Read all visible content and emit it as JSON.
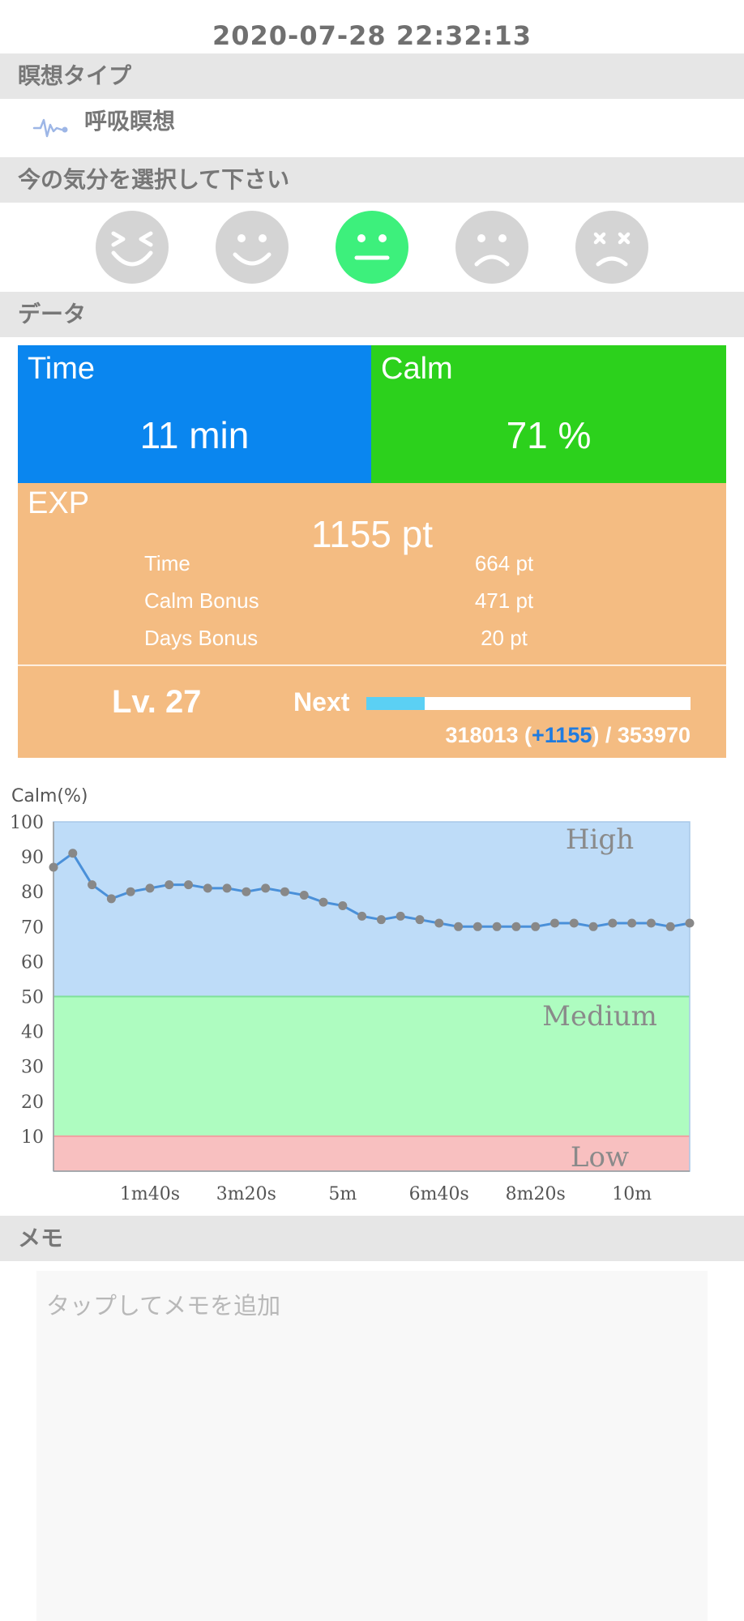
{
  "header": {
    "datetime": "2020-07-28 22:32:13"
  },
  "meditation_type": {
    "section_title": "瞑想タイプ",
    "icon": "breathing-wave-icon",
    "label": "呼吸瞑想"
  },
  "mood": {
    "section_title": "今の気分を選択して下さい",
    "options": [
      {
        "icon": "laughing-face-icon",
        "selected": false
      },
      {
        "icon": "smiling-face-icon",
        "selected": false
      },
      {
        "icon": "neutral-face-icon",
        "selected": true
      },
      {
        "icon": "sad-face-icon",
        "selected": false
      },
      {
        "icon": "dizzy-face-icon",
        "selected": false
      }
    ],
    "selected_color": "#3df07c",
    "unselected_color": "#d4d4d4"
  },
  "data_section": {
    "section_title": "データ",
    "time": {
      "title": "Time",
      "value": "11 min",
      "color": "#0a86ef"
    },
    "calm": {
      "title": "Calm",
      "value": "71 %",
      "color": "#2cd11c"
    },
    "exp": {
      "title": "EXP",
      "total": "1155 pt",
      "breakdown": [
        {
          "label": "Time",
          "value": "664 pt"
        },
        {
          "label": "Calm Bonus",
          "value": "471 pt"
        },
        {
          "label": "Days Bonus",
          "value": "20 pt"
        }
      ],
      "color": "#f4bc82"
    },
    "level": {
      "label": "Lv. 27",
      "next_label": "Next",
      "progress_fraction": 0.18,
      "current": "318013",
      "gain": "+1155",
      "target": "353970"
    }
  },
  "chart_data": {
    "type": "line",
    "ylabel": "Calm(%)",
    "ylim": [
      0,
      100
    ],
    "yticks": [
      10,
      20,
      30,
      40,
      50,
      60,
      70,
      80,
      90,
      100
    ],
    "xlim_seconds": [
      0,
      660
    ],
    "xticks": [
      {
        "label": "1m40s",
        "value": 100
      },
      {
        "label": "3m20s",
        "value": 200
      },
      {
        "label": "5m",
        "value": 300
      },
      {
        "label": "6m40s",
        "value": 400
      },
      {
        "label": "8m20s",
        "value": 500
      },
      {
        "label": "10m",
        "value": 600
      }
    ],
    "bands": [
      {
        "label": "High",
        "from": 50,
        "to": 100,
        "color": "#bedcf8"
      },
      {
        "label": "Medium",
        "from": 10,
        "to": 50,
        "color": "#aefcc0"
      },
      {
        "label": "Low",
        "from": 0,
        "to": 10,
        "color": "#f8c0c0"
      }
    ],
    "series": [
      {
        "color": "#4a90d9",
        "marker_color": "#888888",
        "x": [
          0,
          20,
          40,
          60,
          80,
          100,
          120,
          140,
          160,
          180,
          200,
          220,
          240,
          260,
          280,
          300,
          320,
          340,
          360,
          380,
          400,
          420,
          440,
          460,
          480,
          500,
          520,
          540,
          560,
          580,
          600,
          620,
          640,
          660
        ],
        "values": [
          87,
          91,
          82,
          78,
          80,
          81,
          82,
          82,
          81,
          81,
          80,
          81,
          80,
          79,
          77,
          76,
          73,
          72,
          73,
          72,
          71,
          70,
          70,
          70,
          70,
          70,
          71,
          71,
          70,
          71,
          71,
          71,
          70,
          71
        ]
      }
    ]
  },
  "memo": {
    "section_title": "メモ",
    "placeholder": "タップしてメモを追加"
  }
}
